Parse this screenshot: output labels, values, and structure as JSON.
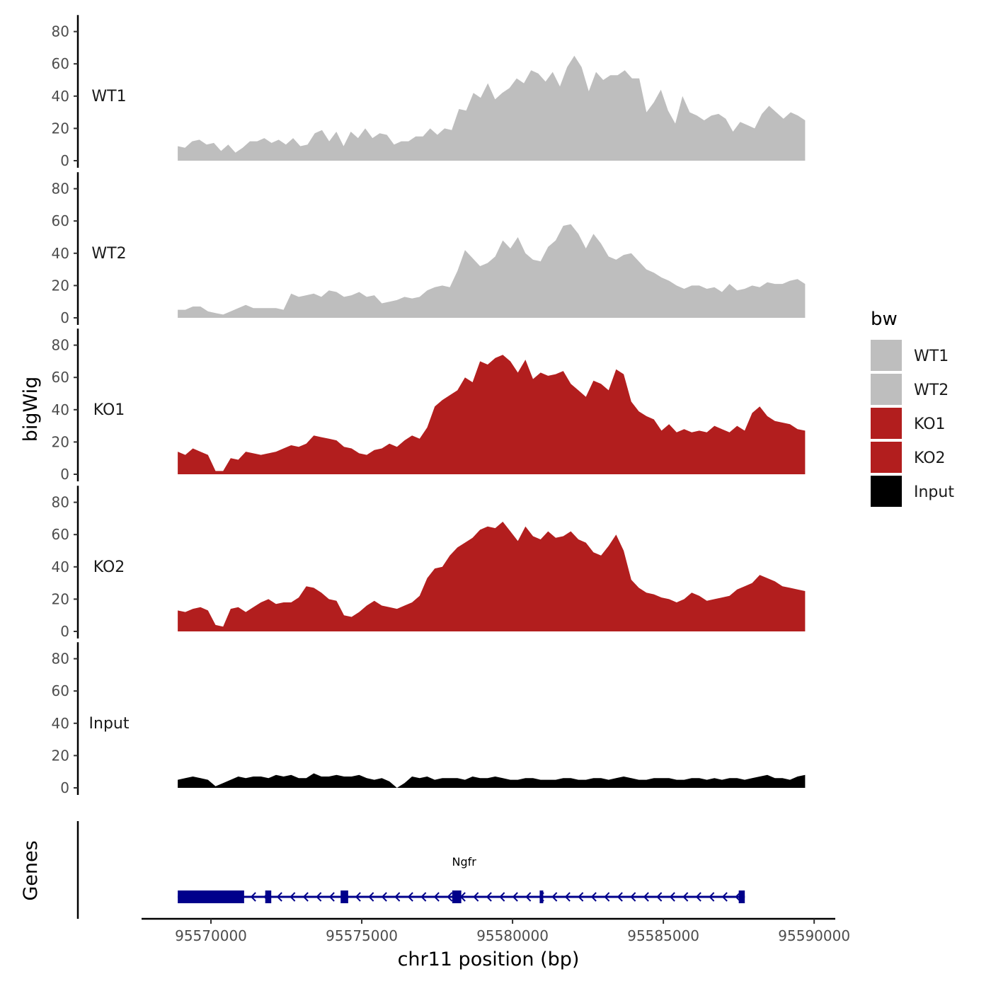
{
  "chart_data": {
    "type": "area",
    "chromosome_label": "chr11 position (bp)",
    "ylabel": "bigWig",
    "genes_label": "Genes",
    "ylim": [
      0,
      85
    ],
    "y_ticks": [
      0,
      20,
      40,
      60,
      80
    ],
    "y_tick_labels": [
      "0",
      "20",
      "40",
      "60",
      "80"
    ],
    "xlim": [
      95567700,
      95590700
    ],
    "x_ticks": [
      95570000,
      95575000,
      95580000,
      95585000,
      95590000
    ],
    "x_tick_labels": [
      "95570000",
      "95575000",
      "95580000",
      "95585000",
      "95590000"
    ],
    "legend": {
      "title": "bw",
      "entries": [
        {
          "label": "WT1",
          "color": "#bebebe"
        },
        {
          "label": "WT2",
          "color": "#bebebe"
        },
        {
          "label": "KO1",
          "color": "#b21e1e"
        },
        {
          "label": "KO2",
          "color": "#b21e1e"
        },
        {
          "label": "Input",
          "color": "#000000"
        }
      ]
    },
    "series": [
      {
        "name": "WT1",
        "color": "#bebebe",
        "x_start": 95568900,
        "x_end": 95589700,
        "values": [
          9,
          8,
          12,
          13,
          10,
          11,
          6,
          10,
          5,
          8,
          12,
          12,
          14,
          11,
          13,
          10,
          14,
          9,
          10,
          17,
          19,
          12,
          18,
          9,
          18,
          14,
          20,
          14,
          17,
          16,
          10,
          12,
          12,
          15,
          15,
          20,
          16,
          20,
          19,
          32,
          31,
          42,
          39,
          48,
          38,
          42,
          45,
          51,
          48,
          56,
          54,
          49,
          55,
          46,
          58,
          65,
          58,
          43,
          55,
          50,
          53,
          53,
          56,
          51,
          51,
          30,
          36,
          44,
          31,
          23,
          40,
          30,
          28,
          25,
          28,
          29,
          26,
          18,
          24,
          22,
          20,
          29,
          34,
          30,
          26,
          30,
          28,
          25
        ]
      },
      {
        "name": "WT2",
        "color": "#bebebe",
        "x_start": 95568900,
        "x_end": 95589700,
        "values": [
          5,
          5,
          7,
          7,
          4,
          3,
          2,
          4,
          6,
          8,
          6,
          6,
          6,
          6,
          5,
          15,
          13,
          14,
          15,
          13,
          17,
          16,
          13,
          14,
          16,
          13,
          14,
          9,
          10,
          11,
          13,
          12,
          13,
          17,
          19,
          20,
          19,
          29,
          42,
          37,
          32,
          34,
          38,
          48,
          43,
          50,
          40,
          36,
          35,
          44,
          48,
          57,
          58,
          52,
          43,
          52,
          46,
          38,
          36,
          39,
          40,
          35,
          30,
          28,
          25,
          23,
          20,
          18,
          20,
          20,
          18,
          19,
          16,
          21,
          17,
          18,
          20,
          19,
          22,
          21,
          21,
          23,
          24,
          21
        ]
      },
      {
        "name": "KO1",
        "color": "#b21e1e",
        "x_start": 95568900,
        "x_end": 95589700,
        "values": [
          14,
          12,
          16,
          14,
          12,
          2,
          2,
          10,
          9,
          14,
          13,
          12,
          13,
          14,
          16,
          18,
          17,
          19,
          24,
          23,
          22,
          21,
          17,
          16,
          13,
          12,
          15,
          16,
          19,
          17,
          21,
          24,
          22,
          29,
          42,
          46,
          49,
          52,
          60,
          57,
          70,
          68,
          72,
          74,
          70,
          63,
          71,
          59,
          63,
          61,
          62,
          64,
          56,
          52,
          48,
          58,
          56,
          52,
          65,
          62,
          45,
          39,
          36,
          34,
          27,
          31,
          26,
          28,
          26,
          27,
          26,
          30,
          28,
          26,
          30,
          27,
          38,
          42,
          36,
          33,
          32,
          31,
          28,
          27
        ]
      },
      {
        "name": "KO2",
        "color": "#b21e1e",
        "x_start": 95568900,
        "x_end": 95589700,
        "values": [
          13,
          12,
          14,
          15,
          13,
          4,
          3,
          14,
          15,
          12,
          15,
          18,
          20,
          17,
          18,
          18,
          21,
          28,
          27,
          24,
          20,
          19,
          10,
          9,
          12,
          16,
          19,
          16,
          15,
          14,
          16,
          18,
          22,
          33,
          39,
          40,
          47,
          52,
          55,
          58,
          63,
          65,
          64,
          68,
          62,
          56,
          65,
          59,
          57,
          62,
          58,
          59,
          62,
          57,
          55,
          49,
          47,
          53,
          60,
          50,
          32,
          27,
          24,
          23,
          21,
          20,
          18,
          20,
          24,
          22,
          19,
          20,
          21,
          22,
          26,
          28,
          30,
          35,
          33,
          31,
          28,
          27,
          26,
          25
        ]
      },
      {
        "name": "Input",
        "color": "#000000",
        "x_start": 95568900,
        "x_end": 95589700,
        "values": [
          5,
          6,
          7,
          6,
          5,
          1,
          3,
          5,
          7,
          6,
          7,
          7,
          6,
          8,
          7,
          8,
          6,
          6,
          9,
          7,
          7,
          8,
          7,
          7,
          8,
          6,
          5,
          6,
          4,
          0,
          3,
          7,
          6,
          7,
          5,
          6,
          6,
          6,
          5,
          7,
          6,
          6,
          7,
          6,
          5,
          5,
          6,
          6,
          5,
          5,
          5,
          6,
          6,
          5,
          5,
          6,
          6,
          5,
          6,
          7,
          6,
          5,
          5,
          6,
          6,
          6,
          5,
          5,
          6,
          6,
          5,
          6,
          5,
          6,
          6,
          5,
          6,
          7,
          8,
          6,
          6,
          5,
          7,
          8
        ]
      }
    ],
    "gene": {
      "name": "Ngfr",
      "strand": "-",
      "color": "#00008b",
      "start": 95568900,
      "end": 95587700,
      "exons": [
        {
          "start": 95568900,
          "end": 95571100
        },
        {
          "start": 95571800,
          "end": 95572000
        },
        {
          "start": 95574300,
          "end": 95574550
        },
        {
          "start": 95578000,
          "end": 95578300
        },
        {
          "start": 95580900,
          "end": 95581000
        },
        {
          "start": 95587500,
          "end": 95587700
        }
      ]
    }
  }
}
